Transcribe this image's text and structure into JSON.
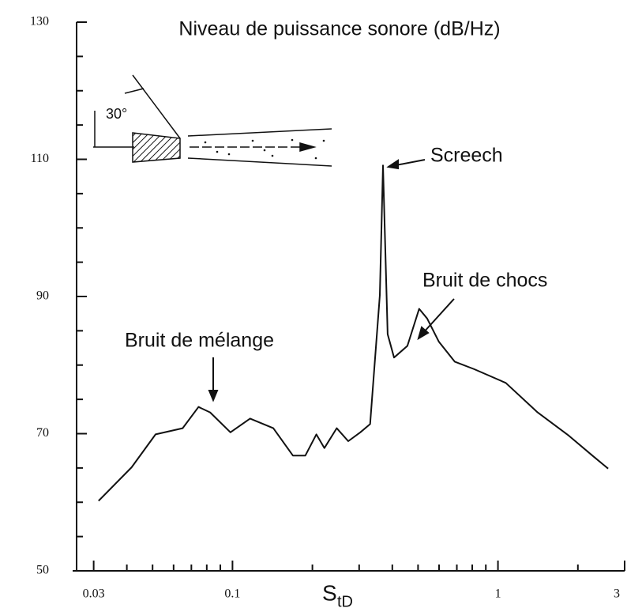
{
  "chart_data": {
    "type": "line",
    "title": "Niveau de puissance sonore (dB/Hz)",
    "xlabel": {
      "main": "S",
      "sub": "tD"
    },
    "log_x": true,
    "xlim": [
      0.025,
      3
    ],
    "xticks": [
      0.03,
      0.1,
      1,
      3
    ],
    "xminorticks": [
      0.04,
      0.05,
      0.06,
      0.07,
      0.08,
      0.09,
      0.2,
      0.3,
      0.4,
      0.5,
      0.6,
      0.7,
      0.8,
      0.9,
      2
    ],
    "ylim": [
      50,
      130
    ],
    "yticks": [
      50,
      70,
      90,
      110,
      130
    ],
    "yminorticks": [
      55,
      60,
      65,
      75,
      80,
      85,
      95,
      100,
      105,
      115,
      120,
      125
    ],
    "annotations": [
      "Screech",
      "Bruit de chocs",
      "Bruit de mélange",
      "30°"
    ],
    "series": [
      {
        "color": "#111111",
        "x": [
          0.0313,
          0.0417,
          0.0513,
          0.0649,
          0.0745,
          0.0824,
          0.0982,
          0.1165,
          0.1425,
          0.169,
          0.188,
          0.207,
          0.222,
          0.247,
          0.273,
          0.303,
          0.33,
          0.359,
          0.369,
          0.384,
          0.406,
          0.456,
          0.505,
          0.541,
          0.599,
          0.687,
          0.815,
          1.07,
          1.41,
          1.85,
          2.27,
          2.6
        ],
        "values": [
          60.2,
          65.1,
          69.9,
          70.8,
          73.9,
          73.1,
          70.2,
          72.2,
          70.8,
          66.8,
          66.8,
          69.9,
          67.9,
          70.8,
          68.9,
          70.2,
          71.4,
          90.2,
          109.1,
          84.5,
          81.1,
          82.8,
          88.2,
          86.8,
          83.4,
          80.5,
          79.4,
          77.4,
          73.1,
          69.7,
          66.8,
          64.9
        ]
      }
    ]
  }
}
